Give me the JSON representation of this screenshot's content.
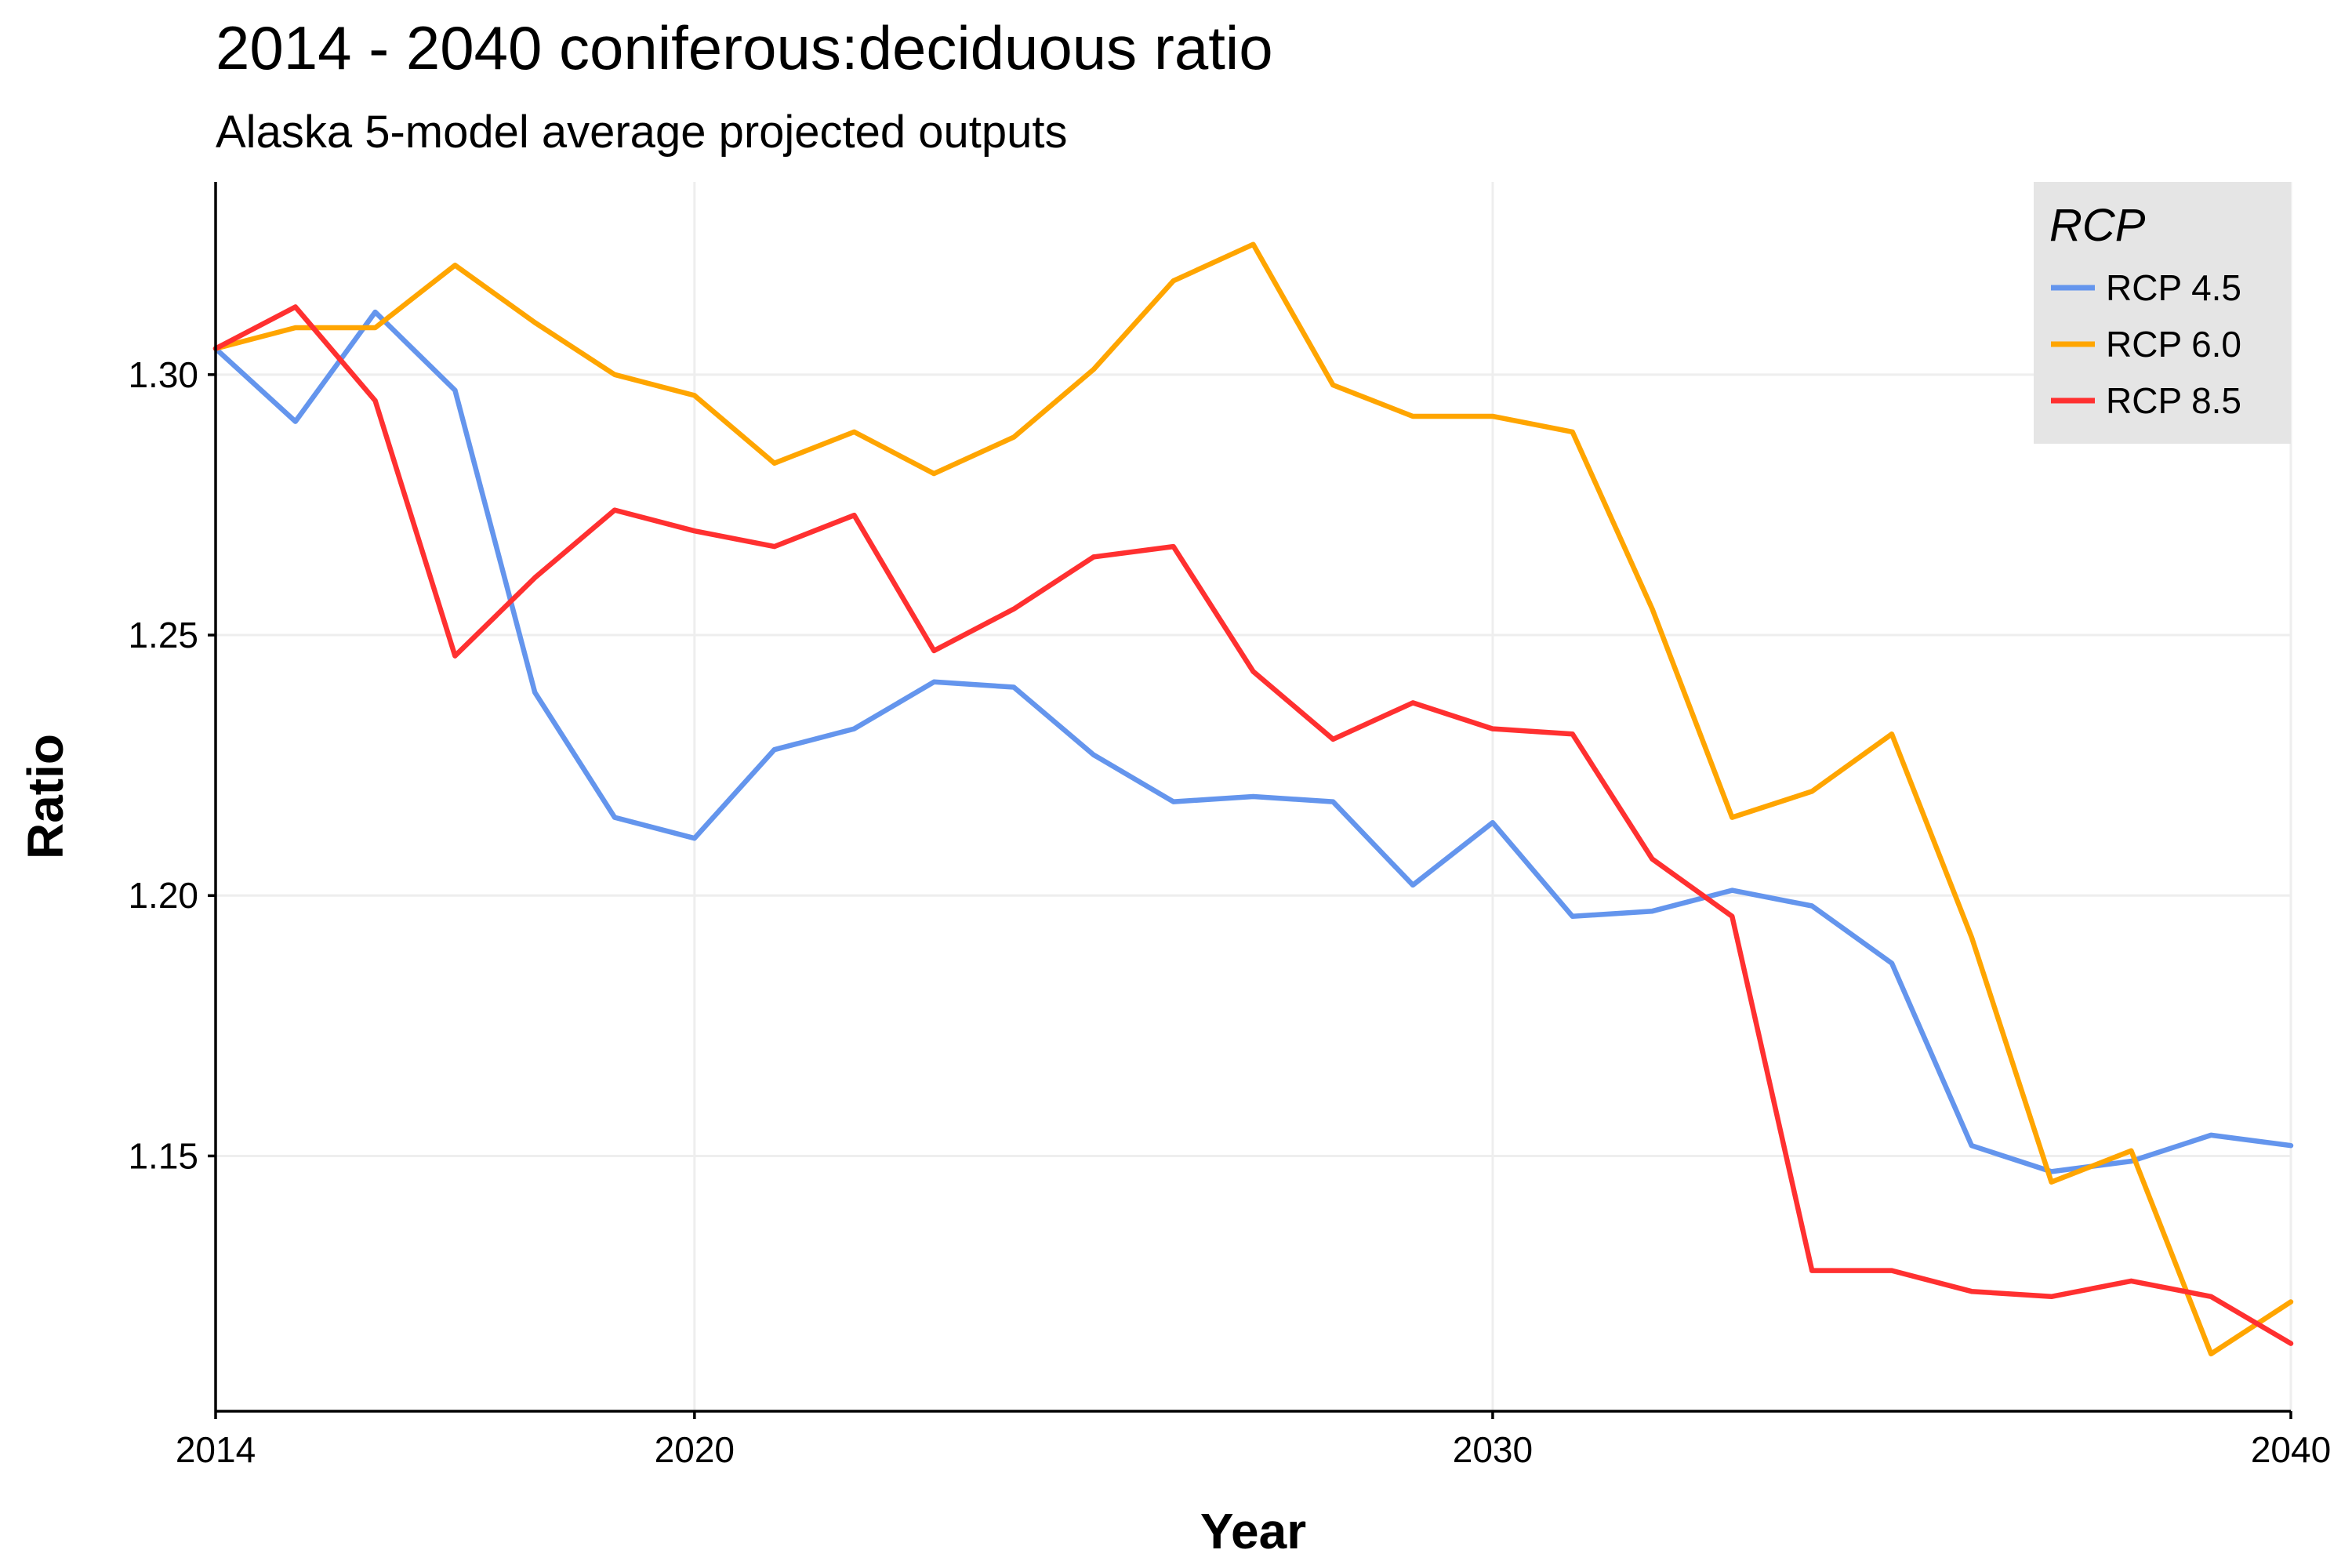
{
  "chart_data": {
    "type": "line",
    "title": "2014 - 2040 coniferous:deciduous ratio",
    "subtitle": "Alaska 5-model average projected outputs",
    "xlabel": "Year",
    "ylabel": "Ratio",
    "xlim": [
      2014,
      2040
    ],
    "ylim": [
      1.101,
      1.337
    ],
    "x_ticks": [
      2014,
      2020,
      2030,
      2040
    ],
    "y_ticks": [
      1.15,
      1.2,
      1.25,
      1.3
    ],
    "y_tick_labels": [
      "1.15",
      "1.20",
      "1.25",
      "1.30"
    ],
    "grid": true,
    "legend": {
      "title": "RCP",
      "position": "top-right"
    },
    "x": [
      2014,
      2015,
      2016,
      2017,
      2018,
      2019,
      2020,
      2021,
      2022,
      2023,
      2024,
      2025,
      2026,
      2027,
      2028,
      2029,
      2030,
      2031,
      2032,
      2033,
      2034,
      2035,
      2036,
      2037,
      2038,
      2039,
      2040
    ],
    "series": [
      {
        "name": "RCP 4.5",
        "color": "#6495ED",
        "values": [
          1.305,
          1.291,
          1.312,
          1.297,
          1.239,
          1.215,
          1.211,
          1.228,
          1.232,
          1.241,
          1.24,
          1.227,
          1.218,
          1.219,
          1.218,
          1.202,
          1.214,
          1.196,
          1.197,
          1.201,
          1.198,
          1.187,
          1.152,
          1.147,
          1.149,
          1.154,
          1.152
        ]
      },
      {
        "name": "RCP 6.0",
        "color": "#FFA500",
        "values": [
          1.305,
          1.309,
          1.309,
          1.321,
          1.31,
          1.3,
          1.296,
          1.283,
          1.289,
          1.281,
          1.288,
          1.301,
          1.318,
          1.325,
          1.298,
          1.292,
          1.292,
          1.289,
          1.255,
          1.215,
          1.22,
          1.231,
          1.192,
          1.145,
          1.151,
          1.112,
          1.122
        ]
      },
      {
        "name": "RCP 8.5",
        "color": "#FF3030",
        "values": [
          1.305,
          1.313,
          1.295,
          1.246,
          1.261,
          1.274,
          1.27,
          1.267,
          1.273,
          1.247,
          1.255,
          1.265,
          1.267,
          1.243,
          1.23,
          1.237,
          1.232,
          1.231,
          1.207,
          1.196,
          1.128,
          1.128,
          1.124,
          1.123,
          1.126,
          1.123,
          1.114
        ]
      }
    ]
  }
}
